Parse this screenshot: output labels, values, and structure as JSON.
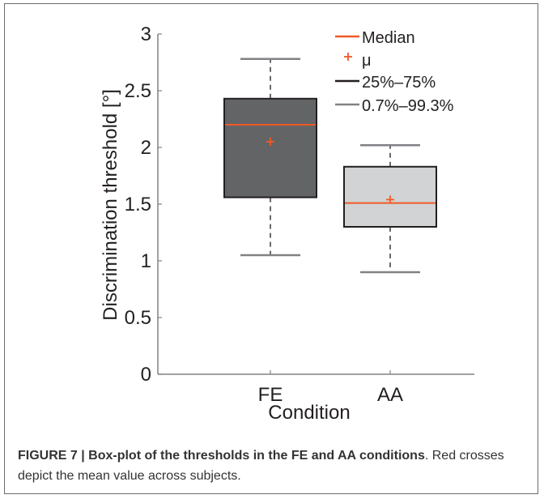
{
  "chart_data": {
    "type": "box",
    "ylabel": "Discrimination threshold [°]",
    "xlabel": "Condition",
    "ylim": [
      0,
      3
    ],
    "yticks": [
      0,
      0.5,
      1,
      1.5,
      2,
      2.5,
      3
    ],
    "ytick_labels": [
      "0",
      "0.5",
      "1",
      "1.5",
      "2",
      "2.5",
      "3"
    ],
    "categories": [
      "FE",
      "AA"
    ],
    "boxes": [
      {
        "category": "FE",
        "whisker_low": 1.05,
        "q1": 1.56,
        "median": 2.2,
        "q3": 2.43,
        "whisker_high": 2.78,
        "mean": 2.05,
        "fill": "#636466"
      },
      {
        "category": "AA",
        "whisker_low": 0.9,
        "q1": 1.3,
        "median": 1.51,
        "q3": 1.83,
        "whisker_high": 2.02,
        "mean": 1.54,
        "fill": "#d1d3d4"
      }
    ],
    "legend": [
      {
        "label": "Median",
        "kind": "line",
        "color": "#f05a28"
      },
      {
        "label": "μ",
        "kind": "plus",
        "color": "#f05a28"
      },
      {
        "label": "25%–75%",
        "kind": "line",
        "color": "#231f20"
      },
      {
        "label": "0.7%–99.3%",
        "kind": "line",
        "color": "#808285"
      }
    ],
    "legend_position": "top-right",
    "colors": {
      "median": "#f05a28",
      "mean": "#f05a28",
      "box_edge": "#231f20",
      "whisker": "#808285",
      "axis": "#808285"
    }
  },
  "caption": {
    "bold": "FIGURE 7 | Box-plot of the thresholds in the FE and AA conditions",
    "rest": ". Red crosses depict the mean value across subjects."
  }
}
